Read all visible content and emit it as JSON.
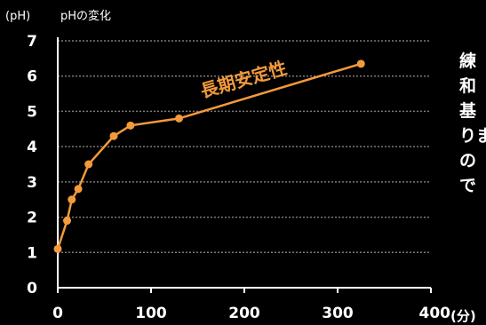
{
  "chart_data": {
    "type": "line",
    "ylabel": "(pH)",
    "title": "pHの変化",
    "x_unit": "(分)",
    "xlim": [
      0,
      400
    ],
    "ylim": [
      0,
      7
    ],
    "x_ticks": [
      "0",
      "100",
      "200",
      "300",
      "400"
    ],
    "y_ticks": [
      "0",
      "1",
      "2",
      "3",
      "4",
      "5",
      "6",
      "7"
    ],
    "grid": true,
    "series": [
      {
        "x": [
          0,
          10,
          15,
          22,
          33,
          60,
          78,
          130,
          325
        ],
        "y": [
          1.1,
          1.9,
          2.5,
          2.8,
          3.5,
          4.3,
          4.6,
          4.8,
          6.35
        ]
      }
    ],
    "annotation": "長期安定性"
  },
  "side_text": [
    "練",
    "和",
    "基",
    "りま",
    "の",
    "で"
  ],
  "colors": {
    "background": "#000000",
    "line": "#f39a3c",
    "grid": "#7a7a7a",
    "annotation": "#f39a3c",
    "axis": "#ffffff"
  }
}
